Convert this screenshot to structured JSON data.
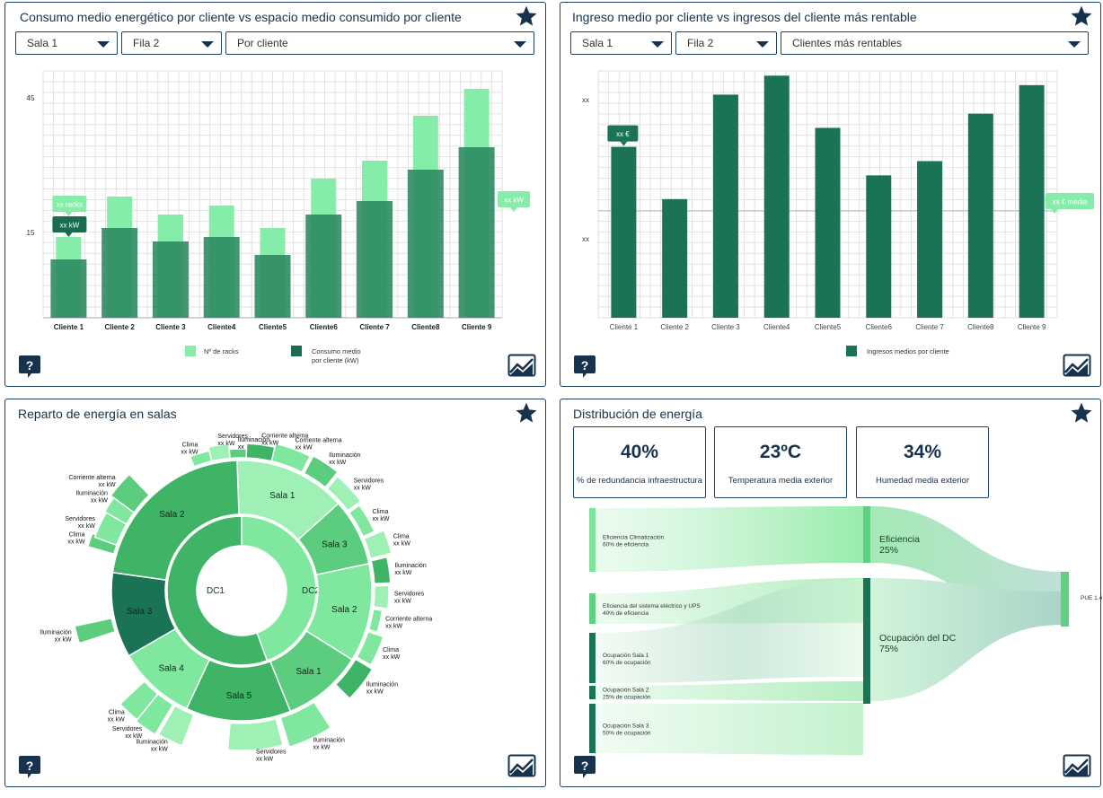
{
  "panel1": {
    "title": "Consumo medio energético por cliente vs espacio medio consumido por cliente",
    "filters": [
      "Sala 1",
      "Fila 2",
      "Por cliente"
    ],
    "y_ticks": [
      "45",
      "15"
    ],
    "tooltip_racks": "xx racks",
    "tooltip_kw": "xx kW",
    "tooltip_kw_right": "xx kW",
    "legend": [
      "Nº de racks",
      "Consumo medio",
      "por cliente (kW)"
    ],
    "colors": {
      "racks": "#86ecaa",
      "consumo": "#2e8b62",
      "consumo_dark": "#1a6b50"
    }
  },
  "panel2": {
    "title": "Ingreso medio por cliente vs ingresos del cliente más rentable",
    "filters": [
      "Sala 1",
      "Fila 2",
      "Clientes más rentables"
    ],
    "y_ticks": [
      "xx",
      "xx"
    ],
    "tooltip_value": "xx €",
    "tooltip_media": "xx € media",
    "legend": [
      "Ingresos medios por cliente"
    ],
    "color": "#1b7356"
  },
  "panel3": {
    "title": "Reparto de energía en salas",
    "center": [
      "DC1",
      "DC2"
    ],
    "ring2": [
      "Sala 1",
      "Sala 3",
      "Sala 2",
      "Sala 1",
      "Sala 5",
      "Sala 4",
      "Sala 3",
      "Sala 2"
    ],
    "outer": [
      {
        "name": "Corriente alterna",
        "value": "xx kW"
      },
      {
        "name": "Iluminación",
        "value": "xx kW"
      },
      {
        "name": "Servidores",
        "value": "xx kW"
      },
      {
        "name": "Clima",
        "value": "xx kW"
      },
      {
        "name": "Clima",
        "value": "xx kW"
      },
      {
        "name": "Iluminación",
        "value": "xx kW"
      },
      {
        "name": "Servidores",
        "value": "xx kW"
      },
      {
        "name": "Corriente alterna",
        "value": "xx kW"
      },
      {
        "name": "Clima",
        "value": "xx kW"
      },
      {
        "name": "Iluminación",
        "value": "xx kW"
      },
      {
        "name": "Iluminación",
        "value": "xx kW"
      },
      {
        "name": "Servidores",
        "value": "xx kW"
      },
      {
        "name": "Iluminación",
        "value": "xx kW"
      },
      {
        "name": "Servidores",
        "value": "xx kW"
      },
      {
        "name": "Clima",
        "value": "xx kW"
      },
      {
        "name": "Iluminación",
        "value": "xx kW"
      },
      {
        "name": "Clima",
        "value": "xx kW"
      },
      {
        "name": "Servidores",
        "value": "xx kW"
      },
      {
        "name": "Iluminación",
        "value": "xx kW"
      },
      {
        "name": "Corriente alterna",
        "value": "xx kW"
      },
      {
        "name": "Clima",
        "value": "xx kW"
      },
      {
        "name": "Servidores",
        "value": "xx kW"
      },
      {
        "name": "Iluminación",
        "value": "xx kW"
      },
      {
        "name": "Corriente alterna",
        "value": "xx kW"
      }
    ]
  },
  "panel4": {
    "title": "Distribución de energía",
    "kpis": [
      {
        "value": "40%",
        "label": "% de redundancia infraestructura"
      },
      {
        "value": "23ºC",
        "label": "Temperatura media exterior"
      },
      {
        "value": "34%",
        "label": "Humedad media exterior"
      }
    ],
    "sources": [
      {
        "name": "Eficiencia Climatización",
        "sub": "60% de eficiencia"
      },
      {
        "name": "Eficiencia del sistema eléctrico y UPS",
        "sub": "40% de eficiencia"
      },
      {
        "name": "Ocupación Sala 1",
        "sub": "60% de ocupación"
      },
      {
        "name": "Ocupación Sala 2",
        "sub": "25% de ocupación"
      },
      {
        "name": "Ocupación Sala 3",
        "sub": "50% de ocupación"
      }
    ],
    "middle": [
      {
        "name": "Eficiencia",
        "sub": "25%"
      },
      {
        "name": "Ocupación del DC",
        "sub": "75%"
      }
    ],
    "target": "PUE 1.4"
  },
  "icons": {
    "star": "star-icon",
    "help": "help-icon",
    "expand": "expand-chart-icon"
  },
  "chart_data": [
    {
      "type": "bar",
      "title": "Consumo medio energético por cliente vs espacio medio consumido por cliente",
      "categories": [
        "Cliente 1",
        "Cliente 2",
        "Cliente 3",
        "Cliente4",
        "Cliente5",
        "Cliente6",
        "Cliente 7",
        "Cliente8",
        "Cliente 9"
      ],
      "series": [
        {
          "name": "Nº de racks",
          "values": [
            14,
            23,
            19,
            21,
            16,
            27,
            31,
            41,
            47
          ]
        },
        {
          "name": "Consumo medio por cliente (kW)",
          "values": [
            9,
            16,
            13,
            14,
            10,
            19,
            22,
            29,
            34
          ]
        }
      ],
      "ylim": [
        -4,
        51
      ],
      "y_ticks": [
        45,
        15
      ]
    },
    {
      "type": "bar",
      "title": "Ingreso medio por cliente vs ingresos del cliente más rentable",
      "categories": [
        "Cliente 1",
        "Cliente 2",
        "Cliente 3",
        "Cliente4",
        "Cliente5",
        "Cliente6",
        "Cliente 7",
        "Cliente8",
        "Cliente 9"
      ],
      "series": [
        {
          "name": "Ingresos medios por cliente",
          "values": [
            36,
            25,
            47,
            51,
            40,
            30,
            33,
            43,
            49
          ]
        }
      ],
      "ylim": [
        0,
        52
      ]
    }
  ]
}
